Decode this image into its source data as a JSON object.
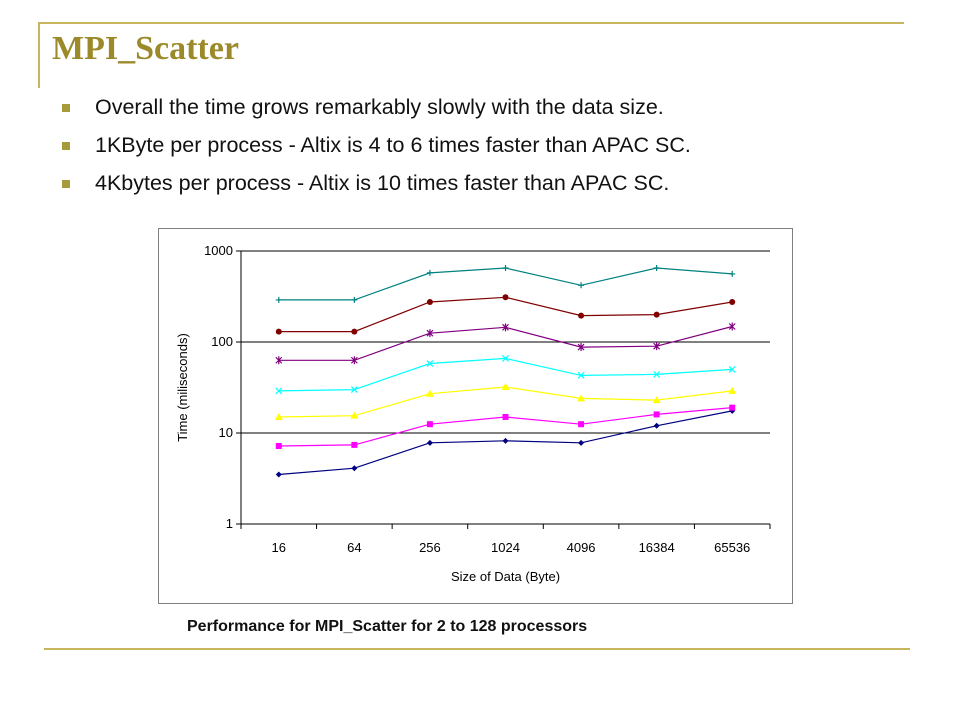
{
  "slide": {
    "title": "MPI_Scatter",
    "bullets": [
      "Overall the time grows remarkably slowly with the data size.",
      "1KByte per process - Altix is 4 to 6 times faster than APAC SC.",
      "4Kbytes per process  - Altix is 10 times faster than APAC SC."
    ],
    "caption": "Performance for MPI_Scatter for 2 to 128 processors",
    "accent_color": "#9c8a2a",
    "rule_color": "#c8b560"
  },
  "chart_data": {
    "type": "line",
    "xlabel": "Size of Data (Byte)",
    "ylabel": "Time (miliseconds)",
    "yscale": "log",
    "ylim": [
      1,
      1000
    ],
    "yticks": [
      "1",
      "10",
      "100",
      "1000"
    ],
    "grid": "major y gridlines at 10 and 100",
    "legend": "none",
    "categories": [
      "16",
      "64",
      "256",
      "1024",
      "4096",
      "16384",
      "65536"
    ],
    "series": [
      {
        "marker": "diamond",
        "color": "#000080",
        "values": [
          3.5,
          4.1,
          7.8,
          8.2,
          7.8,
          12,
          17.5
        ]
      },
      {
        "marker": "square",
        "color": "#ff00ff",
        "values": [
          7.2,
          7.4,
          12.5,
          15,
          12.5,
          16,
          19
        ]
      },
      {
        "marker": "triangle",
        "color": "#ffff00",
        "values": [
          15,
          15.5,
          27,
          32,
          24,
          23,
          29
        ]
      },
      {
        "marker": "x",
        "color": "#00ffff",
        "values": [
          29,
          30,
          58,
          66,
          43,
          44,
          50
        ]
      },
      {
        "marker": "star",
        "color": "#800080",
        "values": [
          63,
          63,
          125,
          145,
          88,
          90,
          148
        ]
      },
      {
        "marker": "circle",
        "color": "#800000",
        "values": [
          130,
          130,
          275,
          310,
          195,
          200,
          275
        ]
      },
      {
        "marker": "plus",
        "color": "#008080",
        "values": [
          290,
          290,
          575,
          650,
          420,
          650,
          560
        ]
      }
    ]
  }
}
